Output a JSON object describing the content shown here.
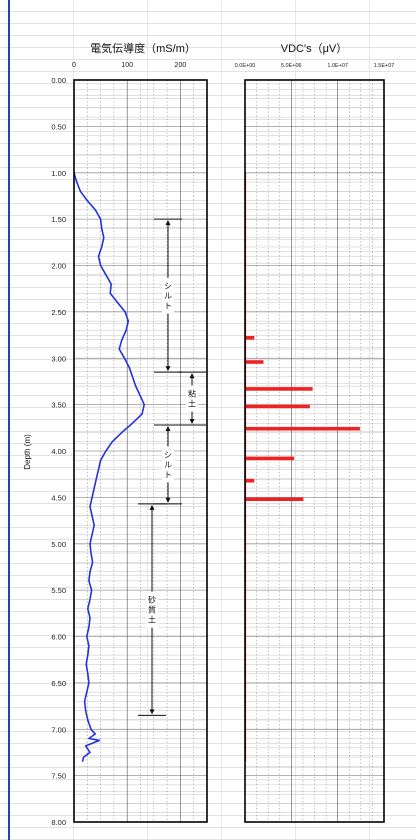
{
  "chart_data": [
    {
      "type": "line",
      "title": "電気伝導度（mS/m）",
      "ylabel": "Depth (m)",
      "xlim": [
        0,
        250
      ],
      "ylim": [
        0.0,
        8.0
      ],
      "x_ticks": [
        "0",
        "100",
        "200"
      ],
      "y_ticks": [
        "0.00",
        "0.50",
        "1.00",
        "1.50",
        "2.00",
        "2.50",
        "3.00",
        "3.50",
        "4.00",
        "4.50",
        "5.00",
        "5.50",
        "6.00",
        "6.50",
        "7.00",
        "7.50",
        "8.00"
      ],
      "grid": true,
      "series": [
        {
          "color": "#2233dd",
          "points": [
            [
              0,
              1.0
            ],
            [
              5,
              1.1
            ],
            [
              12,
              1.2
            ],
            [
              25,
              1.3
            ],
            [
              40,
              1.4
            ],
            [
              50,
              1.5
            ],
            [
              52,
              1.6
            ],
            [
              56,
              1.7
            ],
            [
              52,
              1.8
            ],
            [
              46,
              1.9
            ],
            [
              50,
              2.0
            ],
            [
              60,
              2.1
            ],
            [
              70,
              2.2
            ],
            [
              68,
              2.3
            ],
            [
              82,
              2.4
            ],
            [
              96,
              2.5
            ],
            [
              102,
              2.6
            ],
            [
              98,
              2.7
            ],
            [
              90,
              2.8
            ],
            [
              85,
              2.9
            ],
            [
              95,
              3.0
            ],
            [
              104,
              3.1
            ],
            [
              110,
              3.2
            ],
            [
              116,
              3.3
            ],
            [
              124,
              3.4
            ],
            [
              132,
              3.5
            ],
            [
              128,
              3.6
            ],
            [
              110,
              3.7
            ],
            [
              90,
              3.8
            ],
            [
              72,
              3.9
            ],
            [
              60,
              4.0
            ],
            [
              50,
              4.1
            ],
            [
              46,
              4.2
            ],
            [
              42,
              4.3
            ],
            [
              38,
              4.4
            ],
            [
              34,
              4.5
            ],
            [
              30,
              4.6
            ],
            [
              34,
              4.7
            ],
            [
              38,
              4.8
            ],
            [
              34,
              4.9
            ],
            [
              30,
              5.0
            ],
            [
              32,
              5.1
            ],
            [
              35,
              5.2
            ],
            [
              30,
              5.3
            ],
            [
              28,
              5.4
            ],
            [
              33,
              5.5
            ],
            [
              30,
              5.6
            ],
            [
              26,
              5.7
            ],
            [
              30,
              5.8
            ],
            [
              28,
              5.9
            ],
            [
              24,
              6.0
            ],
            [
              28,
              6.1
            ],
            [
              26,
              6.2
            ],
            [
              23,
              6.3
            ],
            [
              26,
              6.4
            ],
            [
              28,
              6.5
            ],
            [
              24,
              6.6
            ],
            [
              20,
              6.7
            ],
            [
              22,
              6.8
            ],
            [
              26,
              6.9
            ],
            [
              32,
              7.0
            ],
            [
              40,
              7.05
            ],
            [
              28,
              7.1
            ],
            [
              48,
              7.12
            ],
            [
              22,
              7.18
            ],
            [
              30,
              7.25
            ],
            [
              18,
              7.3
            ],
            [
              16,
              7.35
            ]
          ]
        }
      ],
      "annotations": [
        {
          "label": "シルト",
          "from": 1.5,
          "to": 3.15
        },
        {
          "label": "粘土",
          "from": 3.15,
          "to": 3.72
        },
        {
          "label": "シルト",
          "from": 3.72,
          "to": 4.57
        },
        {
          "label": "砂質土",
          "from": 4.57,
          "to": 6.85
        }
      ]
    },
    {
      "type": "bar",
      "title": "VDC's（μV）",
      "xlim": [
        0,
        15000000
      ],
      "ylim": [
        0.0,
        8.0
      ],
      "x_ticks": [
        "0.0E+00",
        "5.0E+06",
        "1.0E+07",
        "1.5E+07"
      ],
      "grid": true,
      "baseline": {
        "from": 1.0,
        "to": 7.35
      },
      "bars": [
        {
          "depth": 2.78,
          "value": 1000000
        },
        {
          "depth": 3.04,
          "value": 2000000
        },
        {
          "depth": 3.33,
          "value": 7300000
        },
        {
          "depth": 3.52,
          "value": 7000000
        },
        {
          "depth": 3.76,
          "value": 12400000
        },
        {
          "depth": 4.08,
          "value": 5300000
        },
        {
          "depth": 4.32,
          "value": 1000000
        },
        {
          "depth": 4.52,
          "value": 6300000
        }
      ]
    }
  ],
  "colors": {
    "ec_line": "#2233dd",
    "vdc_bar": "#ee2222",
    "frame": "#000000",
    "left_rule": "#2b3fb0"
  }
}
